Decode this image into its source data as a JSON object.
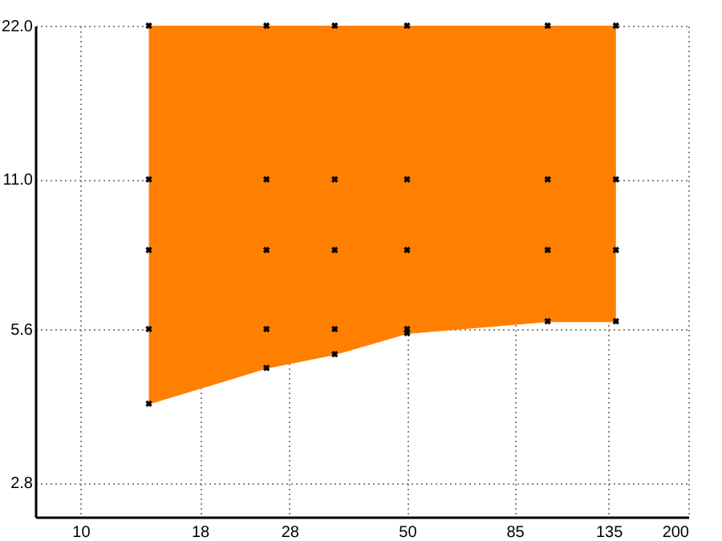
{
  "chart_data": {
    "type": "scatter",
    "log": "xy",
    "grid": true,
    "xlim": [
      8,
      200
    ],
    "xticks": [
      10,
      18,
      28,
      50,
      85,
      135,
      200
    ],
    "ylim": [
      2.4,
      22
    ],
    "yticks": [
      {
        "value": 2.8,
        "label": "2.8"
      },
      {
        "value": 5.6,
        "label": "5.6"
      },
      {
        "value": 11,
        "label": "11.0"
      },
      {
        "value": 22,
        "label": "22.0"
      }
    ],
    "series": [
      {
        "type": "line",
        "color": "#ff8000",
        "x": [
          14,
          25,
          35,
          50,
          100,
          140
        ],
        "values": [
          4.0,
          4.7,
          5.0,
          5.5,
          5.8,
          5.8
        ],
        "lower": [
          4.0,
          4.7,
          5.0,
          5.5,
          5.8,
          5.8
        ],
        "upper": [
          22,
          22,
          22,
          22,
          22,
          22
        ]
      },
      {
        "marker": "cross",
        "color": "#000000",
        "x": [
          14,
          14,
          14,
          14,
          14,
          25,
          25,
          25,
          25,
          25,
          35,
          35,
          35,
          35,
          35,
          50,
          50,
          50,
          50,
          50,
          100,
          100,
          100,
          100,
          140,
          140,
          140,
          140
        ],
        "values": [
          22,
          11,
          8,
          5.6,
          4.0,
          22,
          11,
          8,
          5.6,
          4.7,
          22,
          11,
          8,
          5.6,
          5.0,
          22,
          11,
          8,
          5.6,
          5.5,
          22,
          11,
          8,
          5.8,
          22,
          11,
          8,
          5.8
        ]
      }
    ]
  }
}
